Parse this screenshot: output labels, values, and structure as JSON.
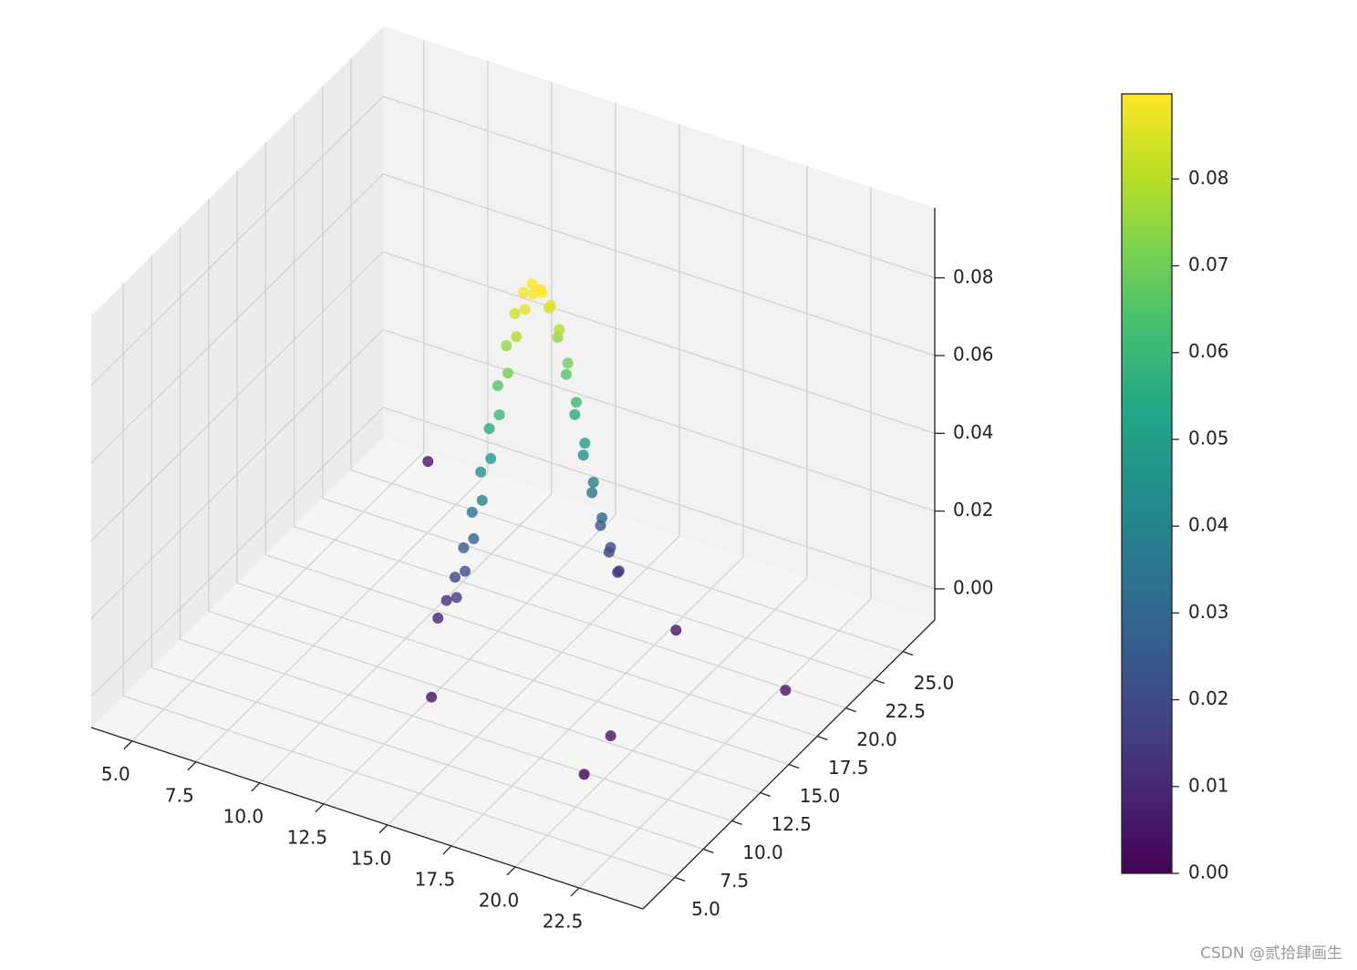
{
  "chart_data": {
    "type": "scatter3d",
    "xlim": [
      3.4,
      25.0
    ],
    "ylim": [
      2.2,
      27.8
    ],
    "zlim": [
      -0.008,
      0.098
    ],
    "xticks": [
      {
        "value": 5,
        "label": "5.0"
      },
      {
        "value": 7.5,
        "label": "7.5"
      },
      {
        "value": 10,
        "label": "10.0"
      },
      {
        "value": 12.5,
        "label": "12.5"
      },
      {
        "value": 15,
        "label": "15.0"
      },
      {
        "value": 17.5,
        "label": "17.5"
      },
      {
        "value": 20,
        "label": "20.0"
      },
      {
        "value": 22.5,
        "label": "22.5"
      }
    ],
    "yticks": [
      {
        "value": 5,
        "label": "5.0"
      },
      {
        "value": 7.5,
        "label": "7.5"
      },
      {
        "value": 10,
        "label": "10.0"
      },
      {
        "value": 12.5,
        "label": "12.5"
      },
      {
        "value": 15,
        "label": "15.0"
      },
      {
        "value": 17.5,
        "label": "17.5"
      },
      {
        "value": 20,
        "label": "20.0"
      },
      {
        "value": 22.5,
        "label": "22.5"
      },
      {
        "value": 25,
        "label": "25.0"
      }
    ],
    "zticks": [
      {
        "value": 0,
        "label": "0.00"
      },
      {
        "value": 0.02,
        "label": "0.02"
      },
      {
        "value": 0.04,
        "label": "0.04"
      },
      {
        "value": 0.06,
        "label": "0.06"
      },
      {
        "value": 0.08,
        "label": "0.08"
      }
    ],
    "grid": true,
    "colormap": [
      "#440154",
      "#482475",
      "#414487",
      "#355f8d",
      "#2a788e",
      "#21918c",
      "#22a884",
      "#44bf70",
      "#7ad151",
      "#bddf26",
      "#fde725"
    ],
    "clim": [
      0,
      0.0898
    ],
    "colorbar_ticks": [
      {
        "value": 0,
        "label": "0.00"
      },
      {
        "value": 0.01,
        "label": "0.01"
      },
      {
        "value": 0.02,
        "label": "0.02"
      },
      {
        "value": 0.03,
        "label": "0.03"
      },
      {
        "value": 0.04,
        "label": "0.04"
      },
      {
        "value": 0.05,
        "label": "0.05"
      },
      {
        "value": 0.06,
        "label": "0.06"
      },
      {
        "value": 0.07,
        "label": "0.07"
      },
      {
        "value": 0.08,
        "label": "0.08"
      }
    ],
    "x": [
      12.19,
      12.4,
      12.61,
      12.82,
      13.03,
      13.24,
      13.45,
      13.66,
      13.87,
      14.08,
      14.29,
      14.5,
      14.71,
      14.92,
      15.13,
      15.34,
      15.55,
      15.76,
      15.97,
      16.18,
      16.39,
      16.6,
      12.91,
      13.12,
      13.33,
      13.54,
      13.75,
      13.96,
      14.17,
      14.38,
      14.59,
      14.8,
      15.01,
      15.22,
      15.43,
      15.64,
      15.85,
      16.06,
      16.27,
      16.48,
      16.69,
      16.9,
      20.2,
      14.0,
      20.3,
      24.2,
      19.2,
      6.9
    ],
    "y": [
      12.92,
      13.2,
      13.48,
      13.76,
      14.04,
      14.32,
      14.6,
      14.88,
      15.16,
      15.44,
      15.72,
      16.0,
      16.28,
      16.56,
      16.84,
      17.12,
      17.4,
      17.68,
      17.96,
      18.24,
      18.52,
      18.8,
      12.94,
      13.22,
      13.5,
      13.78,
      14.06,
      14.34,
      14.62,
      14.9,
      15.18,
      15.46,
      15.74,
      16.02,
      16.3,
      16.58,
      16.86,
      17.14,
      17.42,
      17.7,
      17.98,
      18.26,
      7.8,
      8.3,
      9.9,
      16.5,
      18.1,
      23.9
    ],
    "z": [
      0.008,
      0.0122,
      0.0178,
      0.025,
      0.0338,
      0.0438,
      0.0546,
      0.0653,
      0.0752,
      0.0831,
      0.0882,
      0.09,
      0.0882,
      0.0831,
      0.0752,
      0.0653,
      0.0546,
      0.0438,
      0.0338,
      0.025,
      0.0178,
      0.0122,
      0.0148,
      0.0212,
      0.0292,
      0.0387,
      0.0491,
      0.06,
      0.0704,
      0.0794,
      0.086,
      0.0896,
      0.0896,
      0.086,
      0.0794,
      0.0704,
      0.06,
      0.0491,
      0.0387,
      0.0292,
      0.0212,
      0.0148,
      0.0,
      0.005,
      0.004,
      0.005,
      0.005,
      0.005
    ],
    "watermark": "CSDN @贰拾肆画生"
  }
}
